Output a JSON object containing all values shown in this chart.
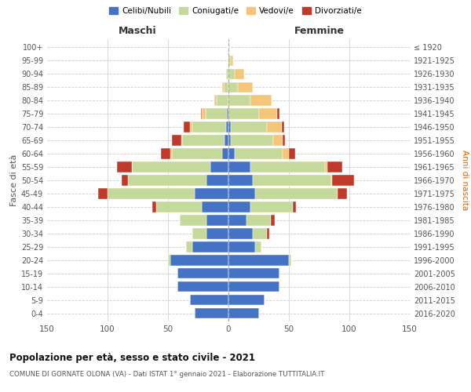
{
  "age_groups": [
    "0-4",
    "5-9",
    "10-14",
    "15-19",
    "20-24",
    "25-29",
    "30-34",
    "35-39",
    "40-44",
    "45-49",
    "50-54",
    "55-59",
    "60-64",
    "65-69",
    "70-74",
    "75-79",
    "80-84",
    "85-89",
    "90-94",
    "95-99",
    "100+"
  ],
  "birth_years": [
    "2016-2020",
    "2011-2015",
    "2006-2010",
    "2001-2005",
    "1996-2000",
    "1991-1995",
    "1986-1990",
    "1981-1985",
    "1976-1980",
    "1971-1975",
    "1966-1970",
    "1961-1965",
    "1956-1960",
    "1951-1955",
    "1946-1950",
    "1941-1945",
    "1936-1940",
    "1931-1935",
    "1926-1930",
    "1921-1925",
    "≤ 1920"
  ],
  "maschi": {
    "celibi": [
      28,
      32,
      42,
      42,
      48,
      30,
      18,
      18,
      22,
      28,
      18,
      15,
      5,
      3,
      2,
      1,
      0,
      0,
      0,
      0,
      0
    ],
    "coniugati": [
      0,
      0,
      0,
      0,
      2,
      5,
      12,
      22,
      38,
      72,
      65,
      65,
      42,
      35,
      28,
      18,
      10,
      4,
      2,
      0,
      0
    ],
    "vedovi": [
      0,
      0,
      0,
      0,
      0,
      0,
      0,
      0,
      0,
      0,
      0,
      0,
      1,
      1,
      2,
      3,
      2,
      1,
      0,
      0,
      0
    ],
    "divorziati": [
      0,
      0,
      0,
      0,
      0,
      0,
      0,
      0,
      3,
      8,
      5,
      12,
      8,
      8,
      5,
      1,
      0,
      0,
      0,
      0,
      0
    ]
  },
  "femmine": {
    "nubili": [
      25,
      30,
      42,
      42,
      50,
      22,
      20,
      15,
      18,
      22,
      20,
      18,
      5,
      2,
      2,
      0,
      0,
      0,
      0,
      0,
      0
    ],
    "coniugate": [
      0,
      0,
      0,
      0,
      2,
      5,
      12,
      20,
      35,
      68,
      65,
      62,
      40,
      35,
      30,
      25,
      18,
      8,
      5,
      2,
      0
    ],
    "vedove": [
      0,
      0,
      0,
      0,
      0,
      0,
      0,
      0,
      0,
      0,
      1,
      2,
      5,
      8,
      12,
      15,
      18,
      12,
      8,
      2,
      0
    ],
    "divorziate": [
      0,
      0,
      0,
      0,
      0,
      0,
      2,
      3,
      3,
      8,
      18,
      12,
      5,
      2,
      2,
      2,
      0,
      0,
      0,
      0,
      0
    ]
  },
  "colors": {
    "celibi_nubili": "#4472c4",
    "coniugati": "#c5d99a",
    "vedovi": "#f5c57a",
    "divorziati": "#c0392b"
  },
  "xlim": 150,
  "title": "Popolazione per età, sesso e stato civile - 2021",
  "subtitle": "COMUNE DI GORNATE OLONA (VA) - Dati ISTAT 1° gennaio 2021 - Elaborazione TUTTITALIA.IT",
  "ylabel_left": "Fasce di età",
  "ylabel_right": "Anni di nascita",
  "xlabel_maschi": "Maschi",
  "xlabel_femmine": "Femmine",
  "legend_labels": [
    "Celibi/Nubili",
    "Coniugati/e",
    "Vedovi/e",
    "Divorziati/e"
  ],
  "bg_color": "#ffffff",
  "grid_color": "#cccccc"
}
